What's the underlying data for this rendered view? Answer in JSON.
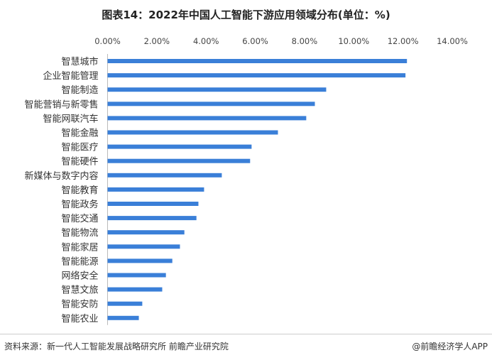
{
  "chart_data": {
    "type": "bar",
    "orientation": "horizontal",
    "title": "图表14：2022年中国人工智能下游应用领域分布(单位：%)",
    "categories": [
      "智慧城市",
      "企业智能管理",
      "智能制造",
      "智能营销与新零售",
      "智能网联汽车",
      "智能金融",
      "智能医疗",
      "智能硬件",
      "新媒体与数字内容",
      "智能教育",
      "智能政务",
      "智能交通",
      "智能物流",
      "智能家居",
      "智能能源",
      "网络安全",
      "智慧文旅",
      "智能安防",
      "智能农业"
    ],
    "values": [
      12.16,
      12.1,
      8.88,
      8.42,
      8.07,
      6.92,
      5.85,
      5.79,
      4.64,
      3.92,
      3.69,
      3.61,
      3.12,
      2.94,
      2.63,
      2.37,
      2.22,
      1.41,
      1.27
    ],
    "xlim": [
      0,
      14
    ],
    "x_ticks": [
      "0.00%",
      "2.00%",
      "4.00%",
      "6.00%",
      "8.00%",
      "10.00%",
      "12.00%",
      "14.00%"
    ],
    "x_axis_position": "top",
    "grid": false,
    "bar_color": "#3a7fd8"
  },
  "footer": {
    "source": "资料来源：新一代人工智能发展战略研究所 前瞻产业研究院",
    "brand": "@前瞻经济学人APP"
  }
}
